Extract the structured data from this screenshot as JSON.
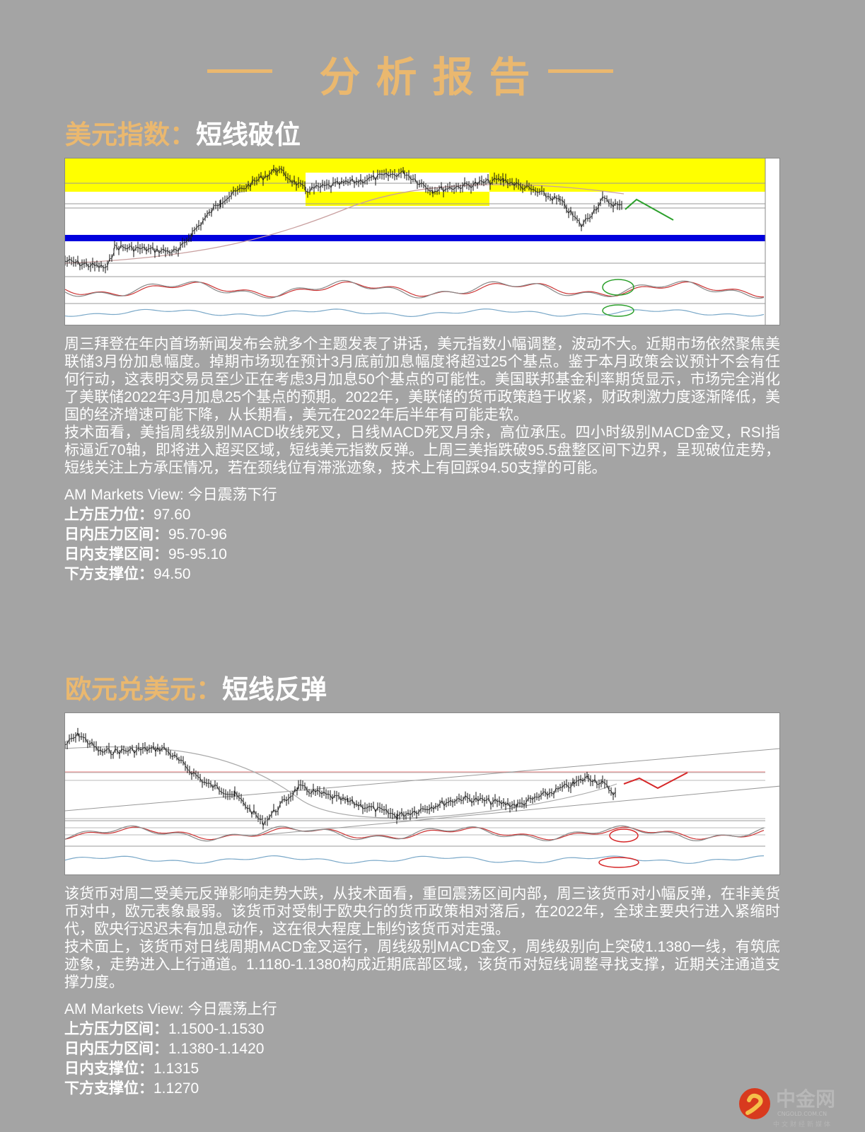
{
  "colors": {
    "gold": "#eab86f",
    "background": "#a4a4a4",
    "up_arrow": "#2ca02c",
    "down_arrow": "#d62728",
    "support_band": "#0000dd",
    "resistance_band": "#ffff00"
  },
  "title": "分析报告",
  "sections": [
    {
      "heading_asset": "美元指数：",
      "heading_view": "短线破位",
      "paragraphs": [
        "周三拜登在年内首场新闻发布会就多个主题发表了讲话，美元指数小幅调整，波动不大。近期市场依然聚焦美联储3月份加息幅度。掉期市场现在预计3月底前加息幅度将超过25个基点。鉴于本月政策会议预计不会有任何行动，这表明交易员至少正在考虑3月加息50个基点的可能性。美国联邦基金利率期货显示，市场完全消化了美联储2022年3月加息25个基点的预期。2022年，美联储的货币政策趋于收紧，财政刺激力度逐渐降低，美国的经济增速可能下降，从长期看，美元在2022年后半年有可能走软。",
        "技术面看，美指周线级别MACD收线死叉，日线MACD死叉月余，高位承压。四小时级别MACD金叉，RSI指标逼近70轴，即将进入超买区域，短线美元指数反弹。上周三美指跌破95.5盘整区间下边界，呈现破位走势，短线关注上方承压情况，若在颈线位有滞涨迹象，技术上有回踩94.50支撑的可能。"
      ],
      "view_title": "AM Markets View: 今日震荡下行",
      "levels": [
        {
          "label": "上方压力位：",
          "value": "97.60"
        },
        {
          "label": "日内压力区间：",
          "value": "95.70-96"
        },
        {
          "label": "日内支撑区间：",
          "value": "95-95.10"
        },
        {
          "label": "下方支撑位：",
          "value": "94.50"
        }
      ]
    },
    {
      "heading_asset": "欧元兑美元：",
      "heading_view": "短线反弹",
      "paragraphs": [
        "该货币对周二受美元反弹影响走势大跌，从技术面看，重回震荡区间内部，周三该货币对小幅反弹，在非美货币对中，欧元表象最弱。该货币对受制于欧央行的货币政策相对落后，在2022年，全球主要央行进入紧缩时代，欧央行迟迟未有加息动作，这在很大程度上制约该货币对走强。",
        "技术面上，该货币对日线周期MACD金叉运行，周线级别MACD金叉，周线级别向上突破1.1380一线，有筑底迹象，走势进入上行通道。1.1180-1.1380构成近期底部区域，该货币对短线调整寻找支撑，近期关注通道支撑力度。"
      ],
      "view_title": "AM Markets View: 今日震荡上行",
      "levels": [
        {
          "label": "上方压力区间：",
          "value": "1.1500-1.1530"
        },
        {
          "label": "日内压力区间：",
          "value": "1.1380-1.1420"
        },
        {
          "label": "日内支撑位：",
          "value": "1.1315"
        },
        {
          "label": "下方支撑位：",
          "value": "1.1270"
        }
      ]
    }
  ],
  "logo": {
    "name": "中金网",
    "domain": "CNGOLD.COM.CN",
    "tagline": "中文财经新媒体"
  }
}
